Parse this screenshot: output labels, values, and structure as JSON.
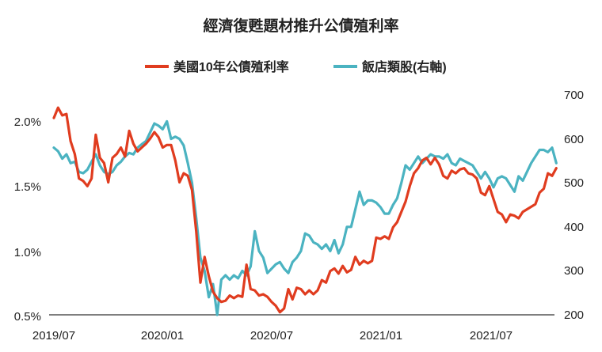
{
  "chart_data": {
    "type": "line",
    "title": "經濟復甦題材推升公債殖利率",
    "x_ticks": [
      "2019/07",
      "2020/01",
      "2020/07",
      "2021/01",
      "2021/07"
    ],
    "y_left": {
      "ticks": [
        "2.0%",
        "1.5%",
        "1.0%",
        "0.5%"
      ],
      "range": [
        0.5,
        2.0
      ]
    },
    "y_right": {
      "ticks": [
        "700",
        "600",
        "500",
        "400",
        "300",
        "200"
      ],
      "range": [
        200,
        700
      ]
    },
    "grid": false,
    "legend_position": "top-center",
    "series": [
      {
        "name": "美國10年公債殖利率",
        "axis": "left",
        "color": "#e03c1f",
        "x": [
          "2019-07-01",
          "2019-07-08",
          "2019-07-15",
          "2019-07-22",
          "2019-07-29",
          "2019-08-05",
          "2019-08-12",
          "2019-08-19",
          "2019-08-26",
          "2019-09-02",
          "2019-09-09",
          "2019-09-16",
          "2019-09-23",
          "2019-09-30",
          "2019-10-07",
          "2019-10-14",
          "2019-10-21",
          "2019-10-28",
          "2019-11-04",
          "2019-11-11",
          "2019-11-18",
          "2019-11-25",
          "2019-12-02",
          "2019-12-09",
          "2019-12-16",
          "2019-12-23",
          "2019-12-30",
          "2020-01-06",
          "2020-01-13",
          "2020-01-20",
          "2020-01-27",
          "2020-02-03",
          "2020-02-10",
          "2020-02-17",
          "2020-02-24",
          "2020-03-02",
          "2020-03-09",
          "2020-03-16",
          "2020-03-23",
          "2020-03-30",
          "2020-04-06",
          "2020-04-13",
          "2020-04-20",
          "2020-04-27",
          "2020-05-04",
          "2020-05-11",
          "2020-05-18",
          "2020-05-25",
          "2020-06-01",
          "2020-06-08",
          "2020-06-15",
          "2020-06-22",
          "2020-06-29",
          "2020-07-06",
          "2020-07-13",
          "2020-07-20",
          "2020-07-27",
          "2020-08-03",
          "2020-08-10",
          "2020-08-17",
          "2020-08-24",
          "2020-08-31",
          "2020-09-07",
          "2020-09-14",
          "2020-09-21",
          "2020-09-28",
          "2020-10-05",
          "2020-10-12",
          "2020-10-19",
          "2020-10-26",
          "2020-11-02",
          "2020-11-09",
          "2020-11-16",
          "2020-11-23",
          "2020-11-30",
          "2020-12-07",
          "2020-12-14",
          "2020-12-21",
          "2020-12-28",
          "2021-01-04",
          "2021-01-11",
          "2021-01-18",
          "2021-01-25",
          "2021-02-01",
          "2021-02-08",
          "2021-02-15",
          "2021-02-22",
          "2021-03-01",
          "2021-03-08",
          "2021-03-15",
          "2021-03-22",
          "2021-03-29",
          "2021-04-05",
          "2021-04-12",
          "2021-04-19",
          "2021-04-26",
          "2021-05-03",
          "2021-05-10",
          "2021-05-17",
          "2021-05-24",
          "2021-05-31",
          "2021-06-07",
          "2021-06-14",
          "2021-06-21",
          "2021-06-28",
          "2021-07-05",
          "2021-07-12",
          "2021-07-19",
          "2021-07-26",
          "2021-08-02",
          "2021-08-09",
          "2021-08-16",
          "2021-08-23",
          "2021-08-30",
          "2021-09-06",
          "2021-09-13",
          "2021-09-20",
          "2021-09-27",
          "2021-10-04",
          "2021-10-11",
          "2021-10-18"
        ],
        "values": [
          2.03,
          2.11,
          2.05,
          2.06,
          1.85,
          1.75,
          1.56,
          1.54,
          1.5,
          1.56,
          1.9,
          1.72,
          1.68,
          1.53,
          1.72,
          1.75,
          1.8,
          1.73,
          1.93,
          1.83,
          1.77,
          1.8,
          1.83,
          1.87,
          1.92,
          1.88,
          1.8,
          1.82,
          1.82,
          1.7,
          1.53,
          1.6,
          1.58,
          1.47,
          1.15,
          0.75,
          0.95,
          0.8,
          0.68,
          0.63,
          0.6,
          0.61,
          0.65,
          0.63,
          0.65,
          0.64,
          0.89,
          0.7,
          0.69,
          0.65,
          0.66,
          0.64,
          0.6,
          0.57,
          0.52,
          0.55,
          0.7,
          0.62,
          0.71,
          0.7,
          0.66,
          0.69,
          0.66,
          0.69,
          0.77,
          0.75,
          0.84,
          0.86,
          0.82,
          0.88,
          0.83,
          0.85,
          0.95,
          0.89,
          0.92,
          0.9,
          0.92,
          1.1,
          1.09,
          1.11,
          1.09,
          1.18,
          1.22,
          1.3,
          1.38,
          1.5,
          1.6,
          1.64,
          1.7,
          1.72,
          1.67,
          1.72,
          1.67,
          1.58,
          1.56,
          1.62,
          1.6,
          1.63,
          1.64,
          1.6,
          1.59,
          1.56,
          1.45,
          1.43,
          1.5,
          1.4,
          1.3,
          1.28,
          1.22,
          1.28,
          1.27,
          1.25,
          1.3,
          1.32,
          1.34,
          1.36,
          1.45,
          1.48,
          1.6,
          1.58,
          1.64
        ]
      },
      {
        "name": "飯店類股(右軸)",
        "axis": "right",
        "color": "#4bb3c1",
        "x": [
          "2019-07-01",
          "2019-07-08",
          "2019-07-15",
          "2019-07-22",
          "2019-07-29",
          "2019-08-05",
          "2019-08-12",
          "2019-08-19",
          "2019-08-26",
          "2019-09-02",
          "2019-09-09",
          "2019-09-16",
          "2019-09-23",
          "2019-09-30",
          "2019-10-07",
          "2019-10-14",
          "2019-10-21",
          "2019-10-28",
          "2019-11-04",
          "2019-11-11",
          "2019-11-18",
          "2019-11-25",
          "2019-12-02",
          "2019-12-09",
          "2019-12-16",
          "2019-12-23",
          "2019-12-30",
          "2020-01-06",
          "2020-01-13",
          "2020-01-20",
          "2020-01-27",
          "2020-02-03",
          "2020-02-10",
          "2020-02-17",
          "2020-02-24",
          "2020-03-02",
          "2020-03-09",
          "2020-03-16",
          "2020-03-23",
          "2020-03-30",
          "2020-04-06",
          "2020-04-13",
          "2020-04-20",
          "2020-04-27",
          "2020-05-04",
          "2020-05-11",
          "2020-05-18",
          "2020-05-25",
          "2020-06-01",
          "2020-06-08",
          "2020-06-15",
          "2020-06-22",
          "2020-06-29",
          "2020-07-06",
          "2020-07-13",
          "2020-07-20",
          "2020-07-27",
          "2020-08-03",
          "2020-08-10",
          "2020-08-17",
          "2020-08-24",
          "2020-08-31",
          "2020-09-07",
          "2020-09-14",
          "2020-09-21",
          "2020-09-28",
          "2020-10-05",
          "2020-10-12",
          "2020-10-19",
          "2020-10-26",
          "2020-11-02",
          "2020-11-09",
          "2020-11-16",
          "2020-11-23",
          "2020-11-30",
          "2020-12-07",
          "2020-12-14",
          "2020-12-21",
          "2020-12-28",
          "2021-01-04",
          "2021-01-11",
          "2021-01-18",
          "2021-01-25",
          "2021-02-01",
          "2021-02-08",
          "2021-02-15",
          "2021-02-22",
          "2021-03-01",
          "2021-03-08",
          "2021-03-15",
          "2021-03-22",
          "2021-03-29",
          "2021-04-05",
          "2021-04-12",
          "2021-04-19",
          "2021-04-26",
          "2021-05-03",
          "2021-05-10",
          "2021-05-17",
          "2021-05-24",
          "2021-05-31",
          "2021-06-07",
          "2021-06-14",
          "2021-06-21",
          "2021-06-28",
          "2021-07-05",
          "2021-07-12",
          "2021-07-19",
          "2021-07-26",
          "2021-08-02",
          "2021-08-09",
          "2021-08-16",
          "2021-08-23",
          "2021-08-30",
          "2021-09-06",
          "2021-09-13",
          "2021-09-20",
          "2021-09-27",
          "2021-10-04",
          "2021-10-11",
          "2021-10-18"
        ],
        "values": [
          580,
          572,
          555,
          565,
          545,
          548,
          525,
          522,
          530,
          548,
          565,
          540,
          525,
          520,
          525,
          540,
          548,
          560,
          568,
          565,
          580,
          588,
          595,
          615,
          635,
          630,
          622,
          640,
          600,
          605,
          600,
          585,
          545,
          500,
          420,
          330,
          300,
          240,
          270,
          200,
          280,
          290,
          280,
          290,
          283,
          300,
          290,
          310,
          390,
          345,
          330,
          295,
          305,
          315,
          320,
          305,
          295,
          320,
          330,
          345,
          385,
          380,
          365,
          360,
          350,
          360,
          345,
          370,
          340,
          360,
          400,
          400,
          440,
          480,
          450,
          460,
          460,
          455,
          445,
          430,
          430,
          450,
          465,
          500,
          540,
          530,
          545,
          560,
          545,
          555,
          565,
          560,
          560,
          555,
          565,
          545,
          540,
          555,
          550,
          545,
          540,
          525,
          510,
          525,
          510,
          490,
          510,
          515,
          510,
          495,
          480,
          515,
          505,
          525,
          545,
          560,
          575,
          575,
          570,
          580,
          545
        ]
      }
    ]
  }
}
